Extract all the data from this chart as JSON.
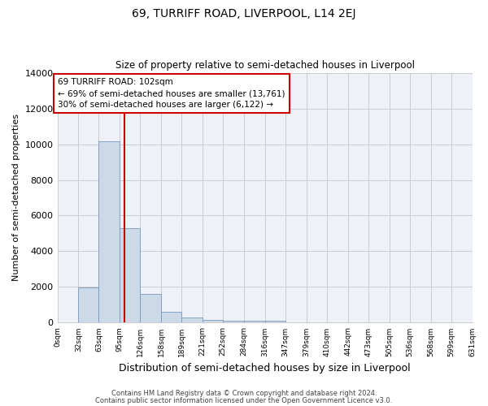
{
  "title": "69, TURRIFF ROAD, LIVERPOOL, L14 2EJ",
  "subtitle": "Size of property relative to semi-detached houses in Liverpool",
  "xlabel": "Distribution of semi-detached houses by size in Liverpool",
  "ylabel": "Number of semi-detached properties",
  "footnote1": "Contains HM Land Registry data © Crown copyright and database right 2024.",
  "footnote2": "Contains public sector information licensed under the Open Government Licence v3.0.",
  "annotation_line1": "69 TURRIFF ROAD: 102sqm",
  "annotation_line2": "← 69% of semi-detached houses are smaller (13,761)",
  "annotation_line3": "30% of semi-detached houses are larger (6,122) →",
  "property_size": 102,
  "bar_edges": [
    0,
    32,
    63,
    95,
    126,
    158,
    189,
    221,
    252,
    284,
    316,
    347,
    379,
    410,
    442,
    473,
    505,
    536,
    568,
    599,
    631
  ],
  "bar_heights": [
    0,
    1980,
    10150,
    5300,
    1600,
    620,
    290,
    160,
    130,
    100,
    100,
    0,
    0,
    0,
    0,
    0,
    0,
    0,
    0,
    0
  ],
  "bar_color": "#ccd9e8",
  "bar_edgecolor": "#7799bb",
  "red_line_color": "#cc0000",
  "grid_color": "#cccccc",
  "background_color": "#ffffff",
  "plot_bg_color": "#eef2f8",
  "ylim": [
    0,
    14000
  ],
  "yticks": [
    0,
    2000,
    4000,
    6000,
    8000,
    10000,
    12000,
    14000
  ]
}
